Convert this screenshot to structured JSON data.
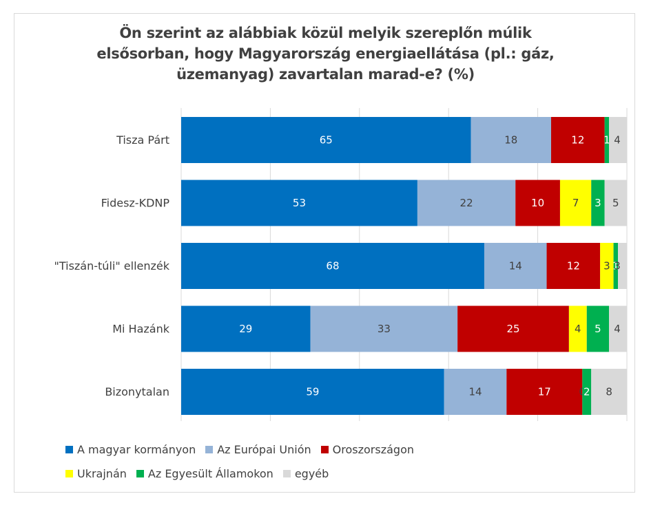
{
  "chart_data": {
    "type": "bar",
    "orientation": "horizontal",
    "stacked": true,
    "title_lines": [
      "Ön szerint az alábbiak közül melyik szereplőn múlik",
      "elsősorban, hogy Magyarország energiaellátása (pl.: gáz,",
      "üzemanyag) zavartalan marad-e? (%)"
    ],
    "categories": [
      "Tisza Párt",
      "Fidesz-KDNP",
      "\"Tiszán-túli\" ellenzék",
      "Mi Hazánk",
      "Bizonytalan"
    ],
    "series": [
      {
        "name": "A magyar kormányon",
        "color": "#0070c0",
        "label_color": "#ffffff",
        "values": [
          65,
          53,
          68,
          29,
          59
        ]
      },
      {
        "name": "Az Európai Unión",
        "color": "#95b3d7",
        "label_color": "#404040",
        "values": [
          18,
          22,
          14,
          33,
          14
        ]
      },
      {
        "name": "Oroszországon",
        "color": "#c00000",
        "label_color": "#ffffff",
        "values": [
          12,
          10,
          12,
          25,
          17
        ]
      },
      {
        "name": "Ukrajnán",
        "color": "#ffff00",
        "label_color": "#404040",
        "values": [
          0,
          7,
          3,
          4,
          0
        ]
      },
      {
        "name": "Az Egyesült Államokon",
        "color": "#00b050",
        "label_color": "#ffffff",
        "values": [
          1,
          3,
          1,
          5,
          2
        ]
      },
      {
        "name": "egyéb",
        "color": "#d9d9d9",
        "label_color": "#404040",
        "values": [
          4,
          5,
          3,
          4,
          8
        ]
      }
    ],
    "segment_labels": [
      [
        "65",
        "18",
        "12",
        "",
        "1",
        "4"
      ],
      [
        "53",
        "22",
        "10",
        "7",
        "3",
        "5"
      ],
      [
        "68",
        "14",
        "12",
        "3",
        "1",
        "3"
      ],
      [
        "29",
        "33",
        "25",
        "4",
        "5",
        "4"
      ],
      [
        "59",
        "14",
        "17",
        "0",
        "2",
        "8"
      ]
    ],
    "xlim": [
      0,
      100
    ],
    "gridlines": [
      0,
      20,
      40,
      60,
      80,
      100
    ],
    "legend_position": "bottom"
  }
}
